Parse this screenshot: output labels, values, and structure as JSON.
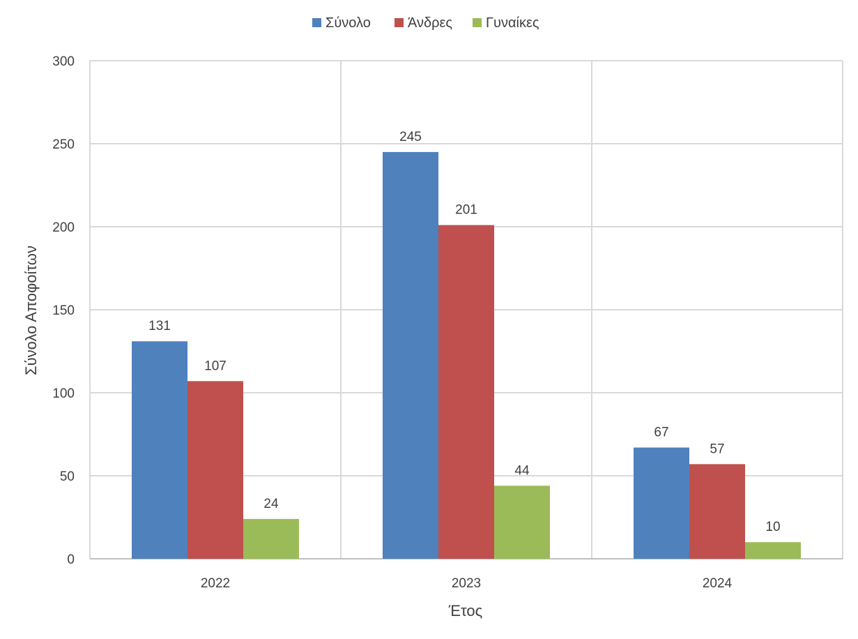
{
  "chart_data": {
    "type": "bar",
    "categories": [
      "2022",
      "2023",
      "2024"
    ],
    "series": [
      {
        "name": "Σύνολο",
        "color": "#4F81BD",
        "values": [
          131,
          245,
          67
        ]
      },
      {
        "name": "Άνδρες",
        "color": "#C0504D",
        "values": [
          107,
          201,
          57
        ]
      },
      {
        "name": "Γυναίκες",
        "color": "#9BBB59",
        "values": [
          24,
          44,
          10
        ]
      }
    ],
    "xlabel": "Έτος",
    "ylabel": "Σύνολο Αποφοίτων",
    "ylim": [
      0,
      300
    ],
    "yticks": [
      0,
      50,
      100,
      150,
      200,
      250,
      300
    ],
    "grid": true,
    "legend_position": "top-center",
    "data_labels": true
  }
}
